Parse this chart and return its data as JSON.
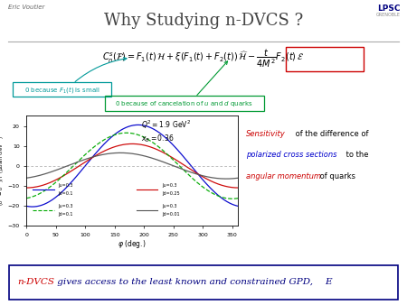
{
  "title": "Why Studying n-DVCS ?",
  "author": "Eric Voutier",
  "bg_color": "#ffffff",
  "title_fontsize": 13,
  "formula_text": "$C_n^s(\\mathcal{F})=F_1(t)\\,\\mathcal{H}+\\xi(F_1(t)+F_2(t))\\,\\widehat{\\mathcal{H}}-\\dfrac{t}{4M^2}F_2(t)\\,\\mathcal{E}$",
  "box1_text": "0 because $F_1(t)$ is small",
  "box1_color": "#009999",
  "box2_text": "0 because of cancelation of $u$ and $d$ quarks",
  "box2_color": "#009933",
  "red_box_color": "#cc0000",
  "plot_xlabel": "$\\varphi$ (deg.)",
  "plot_ylabel": "$(\\sigma^+ - \\sigma^-)/T$  ($\\mu$barn$\\cdot$GeV$^{-2}$)",
  "plot_title1": "$Q^2 = 1.9$ GeV$^2$",
  "plot_title2": "$x_B = 0.36$",
  "curves": [
    {
      "label1": "Ju=0.3",
      "label2": "Jd=0.1",
      "color": "#0000cc",
      "amp": 20.5,
      "ls": "-"
    },
    {
      "label1": "Ju=0.3",
      "label2": "Jd=0.25",
      "color": "#cc0000",
      "amp": 11,
      "ls": "-"
    },
    {
      "label1": "Ju=0.3",
      "label2": "Jd=0.1",
      "color": "#00aa00",
      "amp": 16.5,
      "ls": "--"
    },
    {
      "label1": "Ju=0.3",
      "label2": "Jd=0.01",
      "color": "#555555",
      "amp": 6.5,
      "ls": "-"
    }
  ],
  "bottom_text_pre": "n-DVCS",
  "bottom_text_mid": " gives access to the least known and constrained GPD, ",
  "bottom_text_end": "E",
  "bottom_red": "#cc0000",
  "bottom_blue": "#000080",
  "bottom_box_color": "#000080"
}
